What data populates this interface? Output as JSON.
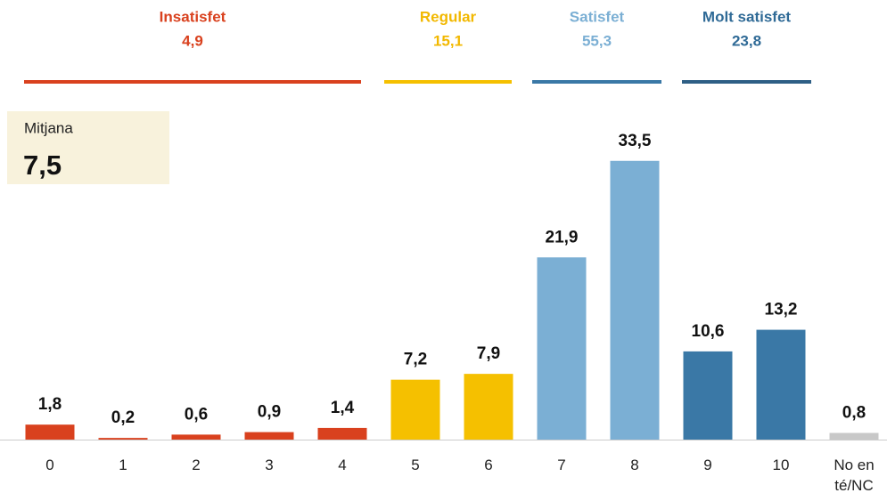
{
  "chart_data": {
    "type": "bar",
    "groups": [
      {
        "name": "Insatisfet",
        "value": 4.9,
        "value_label": "4,9",
        "color": "#d9411e"
      },
      {
        "name": "Regular",
        "value": 15.1,
        "value_label": "15,1",
        "color": "#f2b800"
      },
      {
        "name": "Satisfet",
        "value": 55.3,
        "value_label": "55,3",
        "color": "#7bafd4"
      },
      {
        "name": "Molt satisfet",
        "value": 23.8,
        "value_label": "23,8",
        "color": "#2f6a96"
      }
    ],
    "mean": {
      "label": "Mitjana",
      "value": 7.5,
      "value_label": "7,5"
    },
    "categories": [
      "0",
      "1",
      "2",
      "3",
      "4",
      "5",
      "6",
      "7",
      "8",
      "9",
      "10",
      "No en té/NC"
    ],
    "values": [
      1.8,
      0.2,
      0.6,
      0.9,
      1.4,
      7.2,
      7.9,
      21.9,
      33.5,
      10.6,
      13.2,
      0.8
    ],
    "value_labels": [
      "1,8",
      "0,2",
      "0,6",
      "0,9",
      "1,4",
      "7,2",
      "7,9",
      "21,9",
      "33,5",
      "10,6",
      "13,2",
      "0,8"
    ],
    "colors": [
      "#d9411e",
      "#d9411e",
      "#d9411e",
      "#d9411e",
      "#d9411e",
      "#f5c000",
      "#f5c000",
      "#7bafd4",
      "#7bafd4",
      "#3a78a6",
      "#3a78a6",
      "#c8c8c8"
    ]
  }
}
